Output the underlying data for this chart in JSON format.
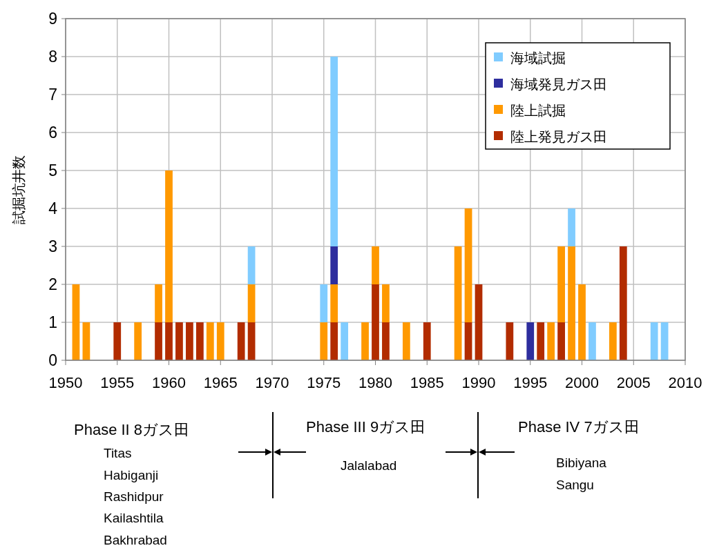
{
  "chart_data": {
    "type": "bar",
    "stacked": true,
    "ylabel": "試掘坑井数",
    "x": [
      1951,
      1952,
      1955,
      1957,
      1959,
      1960,
      1961,
      1962,
      1963,
      1964,
      1965,
      1967,
      1968,
      1975,
      1976,
      1977,
      1979,
      1980,
      1981,
      1983,
      1985,
      1988,
      1989,
      1990,
      1993,
      1995,
      1996,
      1997,
      1998,
      1999,
      2000,
      2001,
      2003,
      2004,
      2007,
      2008
    ],
    "series": [
      {
        "name": "陸上発見ガス田",
        "color": "#b22c00",
        "values": [
          null,
          null,
          1,
          null,
          1,
          1,
          1,
          1,
          1,
          null,
          null,
          1,
          1,
          null,
          1,
          null,
          null,
          2,
          1,
          null,
          1,
          null,
          1,
          2,
          1,
          null,
          1,
          null,
          1,
          null,
          null,
          null,
          null,
          3,
          null,
          null
        ]
      },
      {
        "name": "陸上試掘",
        "color": "#ff9900",
        "values": [
          2,
          1,
          null,
          1,
          1,
          4,
          null,
          null,
          null,
          1,
          1,
          null,
          1,
          1,
          1,
          null,
          1,
          1,
          1,
          1,
          null,
          3,
          3,
          null,
          null,
          null,
          null,
          1,
          2,
          3,
          2,
          null,
          1,
          null,
          null,
          null
        ]
      },
      {
        "name": "海域発見ガス田",
        "color": "#2e2e9e",
        "values": [
          null,
          null,
          null,
          null,
          null,
          null,
          null,
          null,
          null,
          null,
          null,
          null,
          null,
          null,
          1,
          null,
          null,
          null,
          null,
          null,
          null,
          null,
          null,
          null,
          null,
          1,
          null,
          null,
          null,
          null,
          null,
          null,
          null,
          null,
          null,
          null
        ]
      },
      {
        "name": "海域試掘",
        "color": "#80ccff",
        "values": [
          null,
          null,
          null,
          null,
          null,
          null,
          null,
          null,
          null,
          null,
          null,
          null,
          1,
          1,
          5,
          1,
          null,
          null,
          null,
          null,
          null,
          null,
          null,
          null,
          null,
          null,
          null,
          null,
          null,
          1,
          null,
          1,
          null,
          null,
          1,
          1
        ]
      }
    ],
    "xlim": [
      1950,
      2010
    ],
    "xticks": [
      1950,
      1955,
      1960,
      1965,
      1970,
      1975,
      1980,
      1985,
      1990,
      1995,
      2000,
      2005,
      2010
    ],
    "ylim": [
      0,
      9
    ],
    "yticks": [
      0,
      1,
      2,
      3,
      4,
      5,
      6,
      7,
      8,
      9
    ],
    "grid": true,
    "legend": "top right",
    "annotations": [
      "Phase II  8ガス田",
      "Titas",
      "Habiganji",
      "Rashidpur",
      "Kailashtila",
      "Bakhrabad",
      "Phase III  9ガス田",
      "Jalalabad",
      "Phase IV  7ガス田",
      "Bibiyana",
      "Sangu"
    ]
  }
}
